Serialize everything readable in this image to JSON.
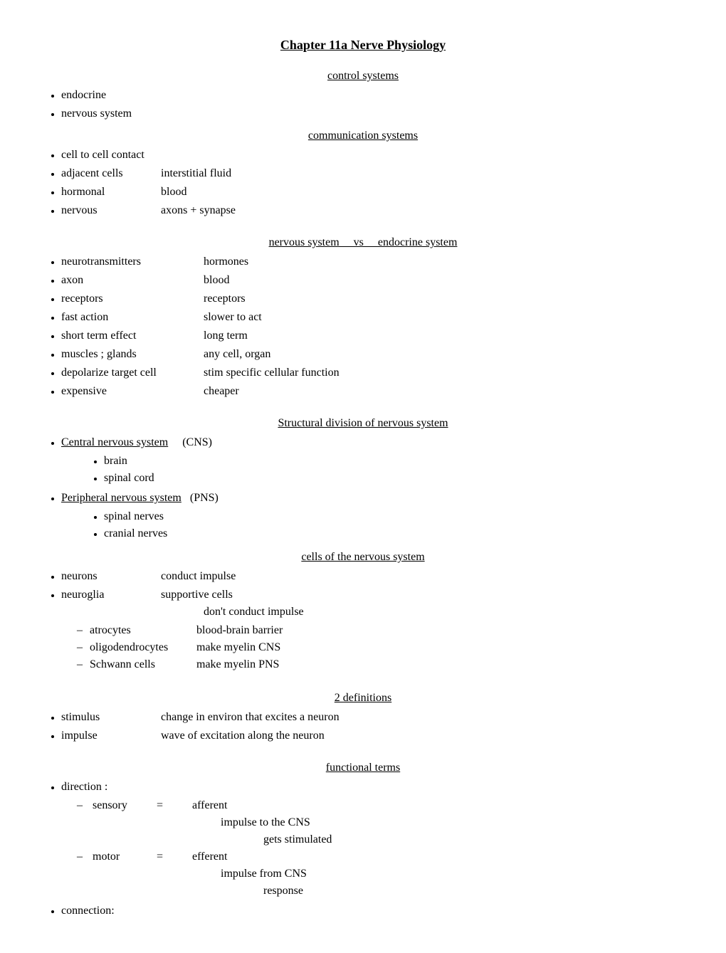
{
  "title": "Chapter 11a  Nerve Physiology",
  "s1": {
    "head": "control systems",
    "items": [
      "endocrine",
      "nervous system"
    ]
  },
  "s2": {
    "head": "communication systems",
    "rows": [
      {
        "a": "cell to cell contact",
        "b": ""
      },
      {
        "a": "adjacent cells",
        "b": "interstitial fluid"
      },
      {
        "a": "hormonal",
        "b": "blood"
      },
      {
        "a": "nervous",
        "b": "axons  +  synapse"
      }
    ]
  },
  "s3": {
    "head": "nervous system     vs     endocrine system",
    "rows": [
      {
        "a": "neurotransmitters",
        "b": "hormones"
      },
      {
        "a": "axon",
        "b": "blood"
      },
      {
        "a": "receptors",
        "b": "receptors"
      },
      {
        "a": "fast action",
        "b": "slower to act"
      },
      {
        "a": "short term effect",
        "b": "long term"
      },
      {
        "a": "muscles ; glands",
        "b": "any cell, organ"
      },
      {
        "a": "depolarize target cell",
        "b": "stim specific cellular function"
      },
      {
        "a": "expensive",
        "b": "cheaper"
      }
    ]
  },
  "s4": {
    "head": "Structural division of nervous system",
    "cns_label": "Central nervous system",
    "cns_abbr": "(CNS)",
    "cns_items": [
      "brain",
      "spinal cord"
    ],
    "pns_label": "Peripheral nervous system",
    "pns_abbr": "(PNS)",
    "pns_items": [
      "spinal nerves",
      "cranial nerves"
    ]
  },
  "s5": {
    "head": "cells of the nervous system",
    "neurons_a": "neurons",
    "neurons_b": "conduct impulse",
    "neuroglia_a": "neuroglia",
    "neuroglia_b": "supportive cells",
    "neuroglia_note": "don't conduct impulse",
    "subs": [
      {
        "a": "atrocytes",
        "b": "blood-brain barrier"
      },
      {
        "a": "oligodendrocytes",
        "b": "make myelin CNS"
      },
      {
        "a": "Schwann cells",
        "b": "make myelin PNS"
      }
    ]
  },
  "s6": {
    "head": "2 definitions",
    "rows": [
      {
        "a": "stimulus",
        "b": "change in environ that excites a neuron"
      },
      {
        "a": "impulse",
        "b": "wave of excitation along the neuron"
      }
    ]
  },
  "s7": {
    "head": "functional terms",
    "direction_label": "direction :",
    "sensory": {
      "a": "sensory",
      "eq": "=",
      "b": "afferent",
      "l1": "impulse to the CNS",
      "l2": "gets stimulated"
    },
    "motor": {
      "a": "motor",
      "eq": "=",
      "b": "efferent",
      "l1": "impulse from CNS",
      "l2": "response"
    },
    "connection_label": "connection:"
  }
}
